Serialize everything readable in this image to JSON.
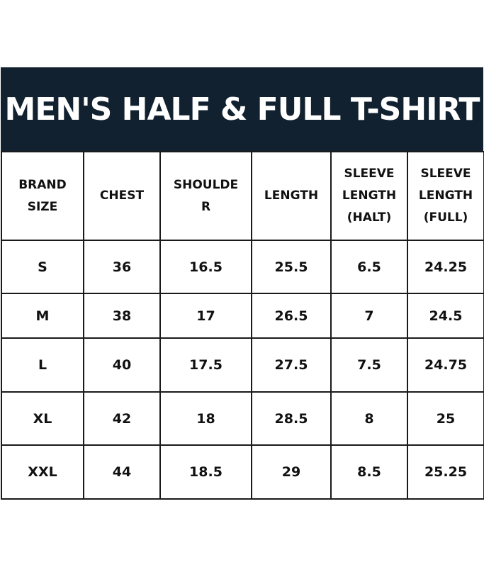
{
  "title": "MEN'S HALF & FULL T-SHIRT",
  "colors": {
    "banner": "#12212f",
    "banner_text": "#ffffff",
    "border": "#1a1a1a"
  },
  "headers": [
    {
      "lines": [
        "BRAND",
        "SIZE"
      ]
    },
    {
      "lines": [
        "CHEST"
      ]
    },
    {
      "lines": [
        "SHOULDE",
        "R"
      ]
    },
    {
      "lines": [
        "LENGTH"
      ]
    },
    {
      "lines": [
        "SLEEVE",
        "LENGTH",
        "(HALT)"
      ]
    },
    {
      "lines": [
        "SLEEVE",
        "LENGTH",
        "(FULL)"
      ]
    }
  ],
  "rows": [
    [
      "S",
      "36",
      "16.5",
      "25.5",
      "6.5",
      "24.25"
    ],
    [
      "M",
      "38",
      "17",
      "26.5",
      "7",
      "24.5"
    ],
    [
      "L",
      "40",
      "17.5",
      "27.5",
      "7.5",
      "24.75"
    ],
    [
      "XL",
      "42",
      "18",
      "28.5",
      "8",
      "25"
    ],
    [
      "XXL",
      "44",
      "18.5",
      "29",
      "8.5",
      "25.25"
    ]
  ]
}
